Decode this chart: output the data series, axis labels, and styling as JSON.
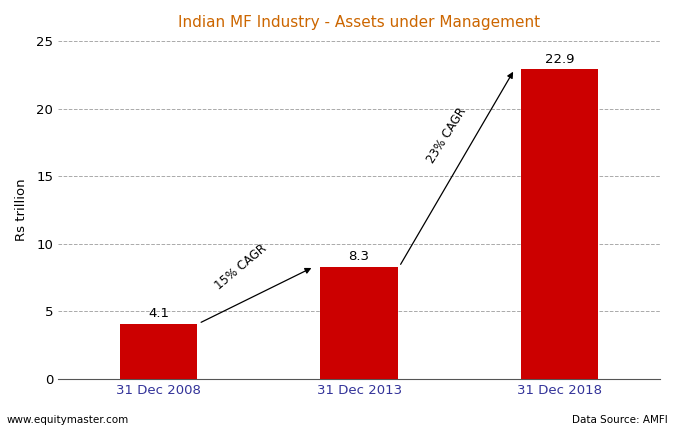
{
  "title": "Indian MF Industry - Assets under Management",
  "title_color": "#cc6600",
  "categories": [
    "31 Dec 2008",
    "31 Dec 2013",
    "31 Dec 2018"
  ],
  "values": [
    4.1,
    8.3,
    22.9
  ],
  "bar_color": "#cc0000",
  "ylabel": "Rs trillion",
  "ylim": [
    0,
    25
  ],
  "yticks": [
    0,
    5,
    10,
    15,
    20,
    25
  ],
  "bar_width": 0.35,
  "annotation_cagr1": "15% CAGR",
  "annotation_cagr2": "23% CAGR",
  "footer_left": "www.equitymaster.com",
  "footer_right": "Data Source: AMFI",
  "background_color": "#ffffff",
  "grid_color": "#aaaaaa"
}
